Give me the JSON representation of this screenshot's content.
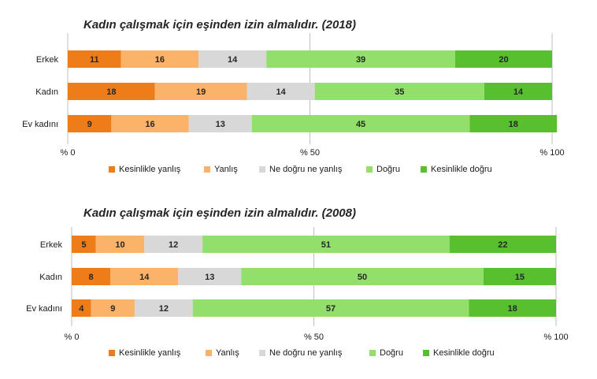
{
  "colors": [
    "#ee7d19",
    "#fbb36a",
    "#d8d8d8",
    "#92e06b",
    "#58bf2f"
  ],
  "legend": [
    "Kesinlikle yanlış",
    "Yanlış",
    "Ne doğru ne yanlış",
    "Doğru",
    "Kesinlikle doğru"
  ],
  "chart_data": [
    {
      "type": "bar",
      "orientation": "horizontal-stacked-100",
      "title": "Kadın çalışmak için eşinden izin almalıdır. (2018)",
      "categories": [
        "Erkek",
        "Kadın",
        "Ev kadını"
      ],
      "series": [
        {
          "name": "Kesinlikle yanlış",
          "values": [
            11,
            18,
            9
          ]
        },
        {
          "name": "Yanlış",
          "values": [
            16,
            19,
            16
          ]
        },
        {
          "name": "Ne doğru ne yanlış",
          "values": [
            14,
            14,
            13
          ]
        },
        {
          "name": "Doğru",
          "values": [
            39,
            35,
            45
          ]
        },
        {
          "name": "Kesinlikle doğru",
          "values": [
            20,
            14,
            18
          ]
        }
      ],
      "xlim": [
        0,
        100
      ],
      "xticks": [
        "% 0",
        "% 50",
        "% 100"
      ],
      "xtick_values": [
        0,
        50,
        100
      ],
      "gridlines": true,
      "legend_position": "bottom"
    },
    {
      "type": "bar",
      "orientation": "horizontal-stacked-100",
      "title": "Kadın çalışmak için eşinden izin almalıdır. (2008)",
      "categories": [
        "Erkek",
        "Kadın",
        "Ev kadını"
      ],
      "series": [
        {
          "name": "Kesinlikle yanlış",
          "values": [
            5,
            8,
            4
          ]
        },
        {
          "name": "Yanlış",
          "values": [
            10,
            14,
            9
          ]
        },
        {
          "name": "Ne doğru ne yanlış",
          "values": [
            12,
            13,
            12
          ]
        },
        {
          "name": "Doğru",
          "values": [
            51,
            50,
            57
          ]
        },
        {
          "name": "Kesinlikle doğru",
          "values": [
            22,
            15,
            18
          ]
        }
      ],
      "xlim": [
        0,
        100
      ],
      "xticks": [
        "% 0",
        "% 50",
        "% 100"
      ],
      "xtick_values": [
        0,
        50,
        100
      ],
      "gridlines": true,
      "legend_position": "bottom"
    }
  ]
}
